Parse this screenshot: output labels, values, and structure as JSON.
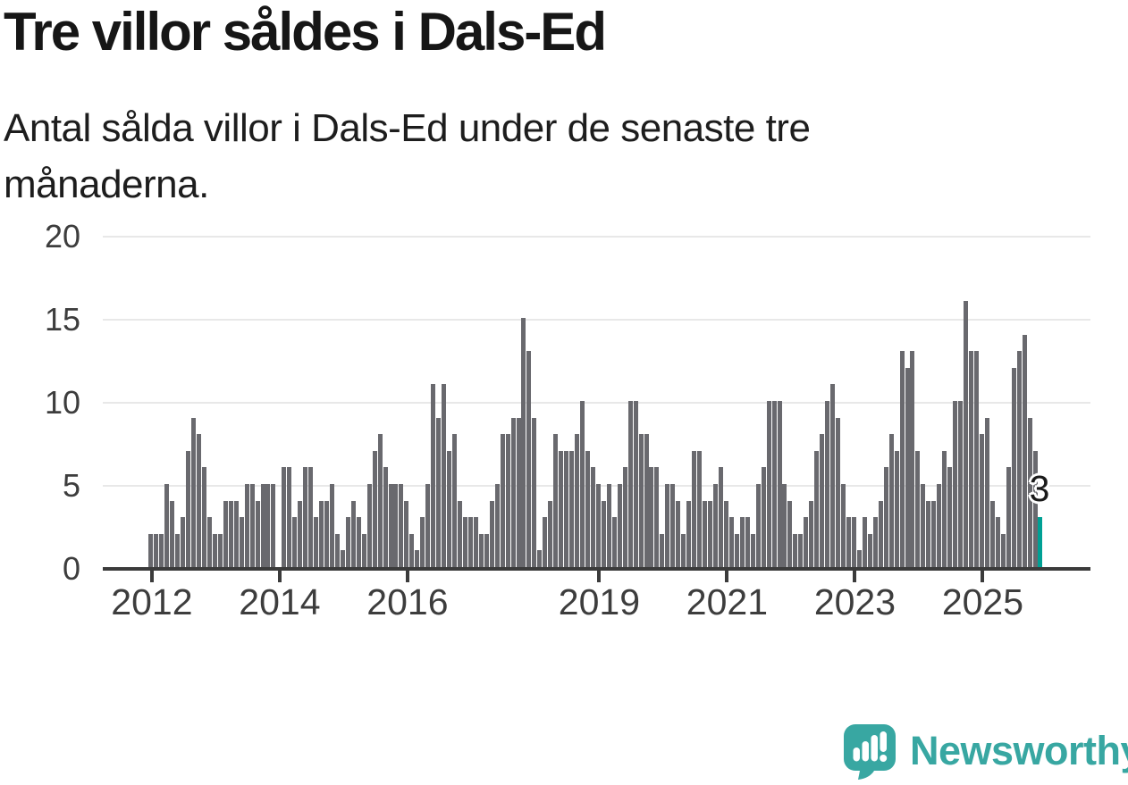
{
  "header": {
    "title": "Tre villor såldes i Dals-Ed",
    "subtitle": "Antal sålda villor i Dals-Ed under de senaste tre månaderna."
  },
  "chart_data": {
    "type": "bar",
    "title": "Tre villor såldes i Dals-Ed",
    "subtitle": "Antal sålda villor i Dals-Ed under de senaste tre månaderna.",
    "start_month": "2012-01",
    "frequency": "monthly",
    "values": [
      2,
      2,
      2,
      5,
      4,
      2,
      3,
      7,
      9,
      8,
      6,
      3,
      2,
      2,
      4,
      4,
      4,
      3,
      5,
      5,
      4,
      5,
      5,
      5,
      0,
      6,
      6,
      3,
      4,
      6,
      6,
      3,
      4,
      4,
      5,
      2,
      1,
      3,
      4,
      3,
      2,
      5,
      7,
      8,
      6,
      5,
      5,
      5,
      4,
      2,
      1,
      3,
      5,
      11,
      9,
      11,
      7,
      8,
      4,
      3,
      3,
      3,
      2,
      2,
      4,
      5,
      8,
      8,
      9,
      9,
      15,
      13,
      9,
      1,
      3,
      4,
      8,
      7,
      7,
      7,
      8,
      10,
      7,
      6,
      5,
      4,
      5,
      3,
      5,
      6,
      10,
      10,
      8,
      8,
      6,
      6,
      2,
      5,
      5,
      4,
      2,
      4,
      7,
      7,
      4,
      4,
      5,
      6,
      4,
      3,
      2,
      3,
      3,
      2,
      5,
      6,
      10,
      10,
      10,
      5,
      4,
      2,
      2,
      3,
      4,
      7,
      8,
      10,
      11,
      9,
      5,
      3,
      3,
      1,
      3,
      2,
      3,
      4,
      6,
      8,
      7,
      13,
      12,
      13,
      7,
      5,
      4,
      4,
      5,
      7,
      6,
      10,
      10,
      16,
      13,
      13,
      8,
      9,
      4,
      3,
      2,
      6,
      12,
      13,
      14,
      9,
      7,
      3
    ],
    "ylim": [
      0,
      20
    ],
    "yticks": [
      0,
      5,
      10,
      15,
      20
    ],
    "xticks": [
      {
        "label": "2012",
        "index": 0
      },
      {
        "label": "2014",
        "index": 24
      },
      {
        "label": "2016",
        "index": 48
      },
      {
        "label": "2019",
        "index": 84
      },
      {
        "label": "2021",
        "index": 108
      },
      {
        "label": "2023",
        "index": 132
      },
      {
        "label": "2025",
        "index": 156
      }
    ],
    "grid": true,
    "legend_position": "none",
    "bar_color": "#69696e",
    "highlight_color": "#00a094",
    "highlight_index": 167,
    "annotation": {
      "label": "3",
      "index": 167
    }
  },
  "footer": {
    "brand": "Newsworthy",
    "logo_icon": "newsworthy-bar-chart-speech-bubble-icon",
    "brand_color": "#38a7a2"
  }
}
